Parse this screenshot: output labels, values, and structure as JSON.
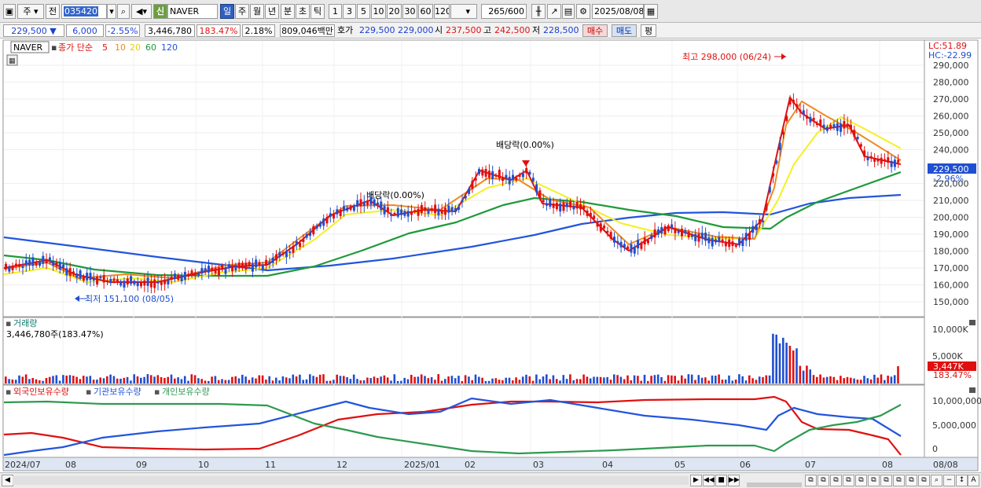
{
  "toolbar": {
    "period_main": "주",
    "prev_label": "전",
    "stock_code": "035420",
    "badge_new": "신",
    "stock_name": "NAVER",
    "periods": [
      "일",
      "주",
      "월",
      "년",
      "분",
      "초",
      "틱"
    ],
    "minute_options": [
      "1",
      "3",
      "5",
      "10",
      "20",
      "30",
      "60",
      "120"
    ],
    "count": "265",
    "count_total": "/600",
    "date": "2025/08/08"
  },
  "info": {
    "price": "229,500",
    "change_arrow": "▼",
    "change": "6,000",
    "change_pct": "-2.55%",
    "volume": "3,446,780",
    "volume_pct": "183.47%",
    "turnover": "2.18%",
    "trade_amount": "809,046백만",
    "quote_label": "호가",
    "ask": "229,500",
    "bid": "229,000",
    "open_label": "시",
    "open": "237,500",
    "high_label": "고",
    "high": "242,500",
    "low_label": "저",
    "low": "228,500",
    "buy_label": "매수",
    "sell_label": "매도",
    "eval_label": "평"
  },
  "legend": {
    "name": "NAVER",
    "close_label": "종가 단순",
    "ma_periods": [
      "5",
      "10",
      "20",
      "60",
      "120"
    ]
  },
  "price_pane": {
    "lc": "LC:51.89",
    "hc": "HC:-22.99",
    "current_price_tag": "229,500",
    "current_pct_tag": "-2.96%",
    "high_note": "최고 298,000 (06/24)",
    "low_note": "최저 151,100 (08/05)",
    "dividend_note_1": "배당락(0.00%)",
    "dividend_note_2": "배당락(0.00%)",
    "y_ticks": [
      "290,000",
      "280,000",
      "270,000",
      "260,000",
      "250,000",
      "240,000",
      "220,000",
      "210,000",
      "200,000",
      "190,000",
      "180,000",
      "170,000",
      "160,000",
      "150,000"
    ]
  },
  "volume_pane": {
    "title": "거래량",
    "value": "3,446,780주(183.47%)",
    "y_ticks": [
      "10,000K",
      "5,000K"
    ],
    "current_tag": "3,447K",
    "current_pct_tag": "183.47%"
  },
  "holdings_pane": {
    "legend": [
      "외국인보유수량",
      "기관보유수량",
      "개인보유수량"
    ],
    "y_ticks": [
      "10,000,000",
      "5,000,000",
      "0"
    ]
  },
  "x_axis": [
    "2024/07",
    "08",
    "09",
    "10",
    "11",
    "12",
    "2025/01",
    "02",
    "03",
    "04",
    "05",
    "06",
    "07",
    "08",
    "08/08"
  ],
  "colors": {
    "ma5": "#e01010",
    "ma10": "#f08a20",
    "ma20": "#f5f020",
    "ma60": "#1e9a3a",
    "ma120": "#2255dd",
    "up": "#e01010",
    "down": "#1f4fd0",
    "foreign": "#e01010",
    "institution": "#2255dd",
    "individual": "#2e9a50"
  }
}
